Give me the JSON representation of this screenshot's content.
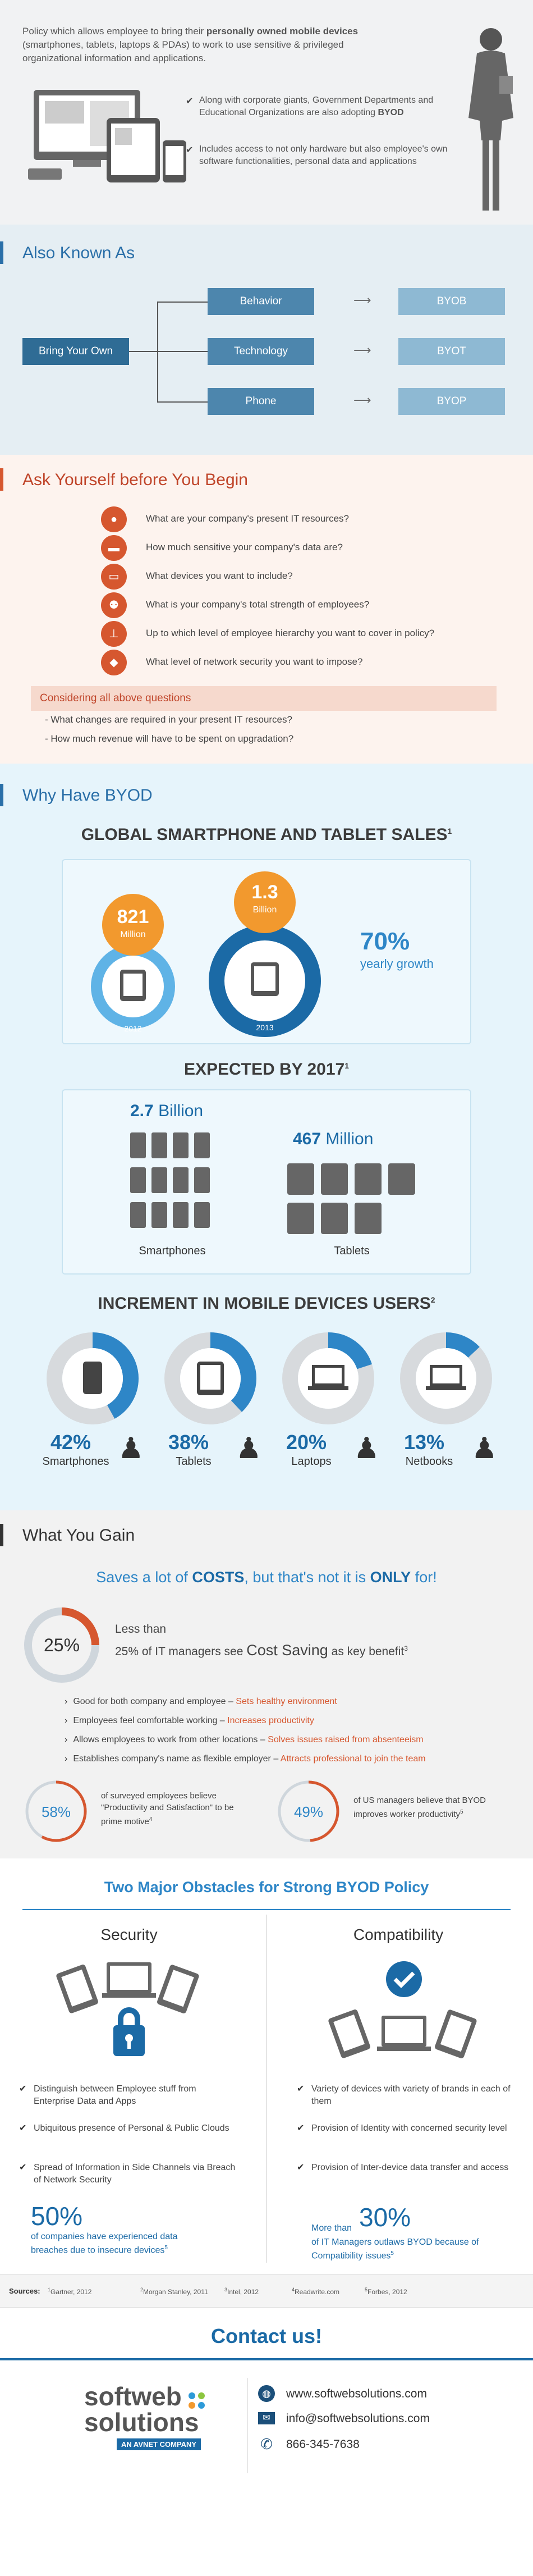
{
  "intro": {
    "text_a": "Policy which allows employee to bring their ",
    "text_b": "personally owned mobile devices",
    "text_c": " (smartphones, tablets, laptops & PDAs) to work to use sensitive & privileged organizational information and applications.",
    "bullet1_a": "Along with corporate giants, Government Departments and Educational Organizations are also adopting ",
    "bullet1_b": "BYOD",
    "bullet2": "Includes access to not only hardware but also employee's own software functionalities, personal data and applications"
  },
  "aka": {
    "title": "Also Known As",
    "root": "Bring Your Own",
    "items": [
      {
        "label": "Behavior",
        "abbr": "BYOB"
      },
      {
        "label": "Technology",
        "abbr": "BYOT"
      },
      {
        "label": "Phone",
        "abbr": "BYOP"
      }
    ]
  },
  "ask": {
    "title": "Ask Yourself before You Begin",
    "questions": [
      "What are your company's present IT resources?",
      "How much sensitive your company's data are?",
      "What devices you want to include?",
      "What is your company's total strength of employees?",
      "Up to which level of employee hierarchy you want to cover in policy?",
      "What level of network security you want to impose?"
    ],
    "consider": "Considering all above questions",
    "sub": [
      "What changes are required in your present IT resources?",
      "How much revenue will have to be spent on upgradation?"
    ]
  },
  "why": {
    "title": "Why Have BYOD",
    "sales_title": "GLOBAL SMARTPHONE AND TABLET SALES",
    "sup1": "1",
    "sales_2012_val": "821",
    "sales_2012_unit": "Million",
    "sales_2012_year": "2012",
    "sales_2013_val": "1.3",
    "sales_2013_unit": "Billion",
    "sales_2013_year": "2013",
    "growth_val": "70%",
    "growth_label": "yearly growth",
    "expected_title": "EXPECTED BY 2017",
    "smart_val": "2.7",
    "smart_unit": "Billion",
    "smart_label": "Smartphones",
    "tab_val": "467",
    "tab_unit": "Million",
    "tab_label": "Tablets",
    "incr_title": "INCREMENT IN MOBILE DEVICES USERS",
    "sup2": "2",
    "incr": [
      {
        "pct": "42%",
        "label": "Smartphones",
        "fraction": 0.42
      },
      {
        "pct": "38%",
        "label": "Tablets",
        "fraction": 0.38
      },
      {
        "pct": "20%",
        "label": "Laptops",
        "fraction": 0.2
      },
      {
        "pct": "13%",
        "label": "Netbooks",
        "fraction": 0.13
      }
    ]
  },
  "gain": {
    "title": "What You Gain",
    "tagline_a": "Saves a lot of ",
    "tagline_b": "COSTS",
    "tagline_c": ", but that's not it is ",
    "tagline_d": "ONLY",
    "tagline_e": " for!",
    "cost_pct": "25%",
    "cost_fraction": 0.25,
    "cost_l1": "Less than",
    "cost_l2a": "25% of IT managers see ",
    "cost_l2b": "Cost Saving",
    "cost_l2c": " as key benefit",
    "sup3": "3",
    "benefits": [
      {
        "a": "Good for both company and employee – ",
        "b": "Sets healthy environment"
      },
      {
        "a": "Employees feel comfortable working – ",
        "b": "Increases productivity"
      },
      {
        "a": "Allows employees to work from other locations – ",
        "b": "Solves issues raised from absenteeism"
      },
      {
        "a": "Establishes company's name as flexible employer – ",
        "b": "Attracts professional to join the team"
      }
    ],
    "stat1_pct": "58%",
    "stat1_fraction": 0.58,
    "stat1_text": "of surveyed employees believe \"Productivity and Satisfaction\" to be prime motive",
    "sup4": "4",
    "stat2_pct": "49%",
    "stat2_fraction": 0.49,
    "stat2_text": "of US managers believe that BYOD improves worker productivity",
    "sup5": "5"
  },
  "obs": {
    "title": "Two Major Obstacles for Strong BYOD Policy",
    "security": "Security",
    "compat": "Compatibility",
    "sec_items": [
      "Distinguish between Employee stuff from Enterprise Data and Apps",
      "Ubiquitous presence of Personal & Public Clouds",
      "Spread of Information in Side Channels via Breach of Network Security"
    ],
    "comp_items": [
      "Variety of devices with variety of brands in each of them",
      "Provision of Identity with concerned security level",
      "Provision of Inter-device data transfer and access"
    ],
    "sec_stat_val": "50%",
    "sec_stat_text": "of companies have experienced data breaches due to insecure devices",
    "sec_sup": "5",
    "comp_stat_pre": "More than",
    "comp_stat_val": "30%",
    "comp_stat_text": "of IT Managers outlaws BYOD because of Compatibility issues",
    "comp_sup": "5"
  },
  "sources": {
    "label": "Sources:",
    "items": [
      {
        "n": "1",
        "t": "Gartner, 2012"
      },
      {
        "n": "2",
        "t": "Morgan Stanley, 2011"
      },
      {
        "n": "3",
        "t": "Intel, 2012"
      },
      {
        "n": "4",
        "t": "Readwrite.com"
      },
      {
        "n": "5",
        "t": "Forbes, 2012"
      }
    ]
  },
  "contact": {
    "title": "Contact us!",
    "logo1": "softweb",
    "logo2": "solutions",
    "logo_tag": "AN AVNET COMPANY",
    "web": "www.softwebsolutions.com",
    "email": "info@softwebsolutions.com",
    "phone": "866-345-7638"
  },
  "colors": {
    "blue": "#2a6fa8",
    "orange": "#d6572f",
    "green": "#2e9ad8"
  },
  "icons": [
    "check-icon",
    "arrow-right-icon",
    "person-icon",
    "server-icon",
    "devices-icon",
    "org-chart-icon",
    "shield-icon",
    "globe-icon",
    "mail-icon",
    "phone-icon",
    "lock-icon",
    "smartphone-icon",
    "tablet-icon",
    "laptop-icon",
    "netbook-icon"
  ]
}
